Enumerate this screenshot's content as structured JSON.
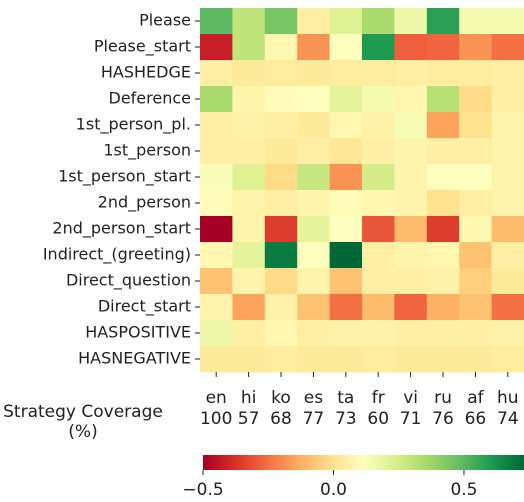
{
  "chart_data": {
    "type": "heatmap",
    "rows": [
      "Please",
      "Please_start",
      "HASHEDGE",
      "Deference",
      "1st_person_pl.",
      "1st_person",
      "1st_person_start",
      "2nd_person",
      "2nd_person_start",
      "Indirect_(greeting)",
      "Direct_question",
      "Direct_start",
      "HASPOSITIVE",
      "HASNEGATIVE"
    ],
    "categories": [
      "en",
      "hi",
      "ko",
      "es",
      "ta",
      "fr",
      "vi",
      "ru",
      "af",
      "hu"
    ],
    "coverage_label": "Strategy Coverage (%)",
    "coverage": [
      100,
      57,
      68,
      77,
      73,
      60,
      71,
      76,
      66,
      74
    ],
    "values": [
      [
        0.5,
        0.3,
        0.45,
        0.05,
        0.22,
        0.35,
        0.17,
        0.58,
        0.15,
        0.15
      ],
      [
        -0.42,
        0.3,
        0.08,
        -0.18,
        0.12,
        0.6,
        -0.28,
        -0.27,
        -0.18,
        -0.25
      ],
      [
        0.05,
        0.03,
        0.04,
        0.03,
        0.04,
        0.04,
        0.05,
        0.04,
        0.04,
        0.05
      ],
      [
        0.35,
        0.07,
        0.1,
        0.12,
        0.2,
        0.15,
        0.08,
        0.32,
        -0.02,
        0.05
      ],
      [
        0.05,
        0.06,
        0.05,
        0.03,
        0.08,
        0.06,
        0.14,
        -0.15,
        0.0,
        0.07
      ],
      [
        0.05,
        0.05,
        0.03,
        0.05,
        0.02,
        0.05,
        0.07,
        0.05,
        0.05,
        0.07
      ],
      [
        0.13,
        0.22,
        -0.02,
        0.28,
        -0.18,
        0.25,
        0.07,
        0.12,
        0.12,
        0.07
      ],
      [
        0.1,
        0.07,
        0.05,
        0.07,
        0.1,
        0.08,
        0.07,
        0.0,
        0.05,
        0.07
      ],
      [
        -0.5,
        0.07,
        -0.35,
        0.2,
        0.12,
        -0.3,
        -0.1,
        -0.35,
        0.08,
        -0.1
      ],
      [
        0.08,
        0.2,
        0.68,
        0.12,
        0.73,
        0.05,
        0.07,
        0.08,
        -0.08,
        0.05
      ],
      [
        -0.08,
        0.07,
        -0.02,
        0.07,
        -0.08,
        0.05,
        0.05,
        0.06,
        -0.05,
        0.03
      ],
      [
        0.07,
        -0.15,
        0.06,
        -0.08,
        -0.25,
        -0.1,
        -0.27,
        -0.12,
        -0.08,
        -0.25
      ],
      [
        0.17,
        0.05,
        0.08,
        0.05,
        0.06,
        0.06,
        0.05,
        0.05,
        0.05,
        0.06
      ],
      [
        0.03,
        0.03,
        0.04,
        0.03,
        0.03,
        0.04,
        0.03,
        0.03,
        0.03,
        0.04
      ]
    ],
    "colormap": [
      "#a50026",
      "#d73027",
      "#f46d43",
      "#fdae61",
      "#fee08b",
      "#ffffbf",
      "#d9ef8b",
      "#a6d96a",
      "#66bd63",
      "#1a9850",
      "#006837"
    ],
    "clim": [
      -0.5,
      0.73
    ],
    "cticks": [
      {
        "value": -0.5,
        "label": "−0.5"
      },
      {
        "value": 0,
        "label": "0.0"
      },
      0.5
    ]
  }
}
